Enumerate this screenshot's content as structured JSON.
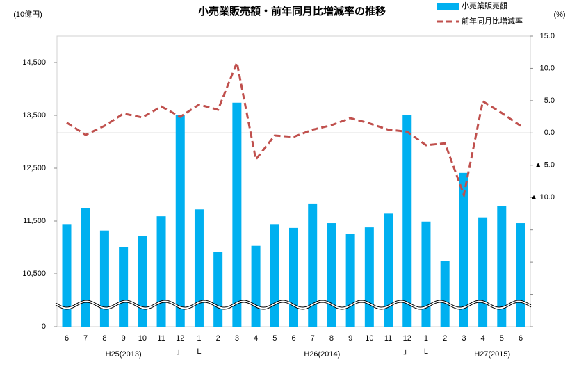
{
  "chart_data": {
    "type": "bar",
    "title": "小売業販売額・前年同月比増減率の推移",
    "y_label": "(10億円)",
    "y2_label": "(%)",
    "categories": [
      "6",
      "7",
      "8",
      "9",
      "10",
      "11",
      "12",
      "1",
      "2",
      "3",
      "4",
      "5",
      "6",
      "7",
      "8",
      "9",
      "10",
      "11",
      "12",
      "1",
      "2",
      "3",
      "4",
      "5",
      "6"
    ],
    "x_groups": [
      "H25(2013)",
      "H26(2014)",
      "H27(2015)"
    ],
    "year_marks": [
      "」",
      "L",
      "」",
      "L"
    ],
    "series": [
      {
        "name": "小売業販売額",
        "type": "bar",
        "color": "#00b0f0",
        "values": [
          11430,
          11750,
          11320,
          11000,
          11220,
          11590,
          13500,
          11720,
          10920,
          13740,
          11030,
          11430,
          11370,
          11830,
          11460,
          11250,
          11380,
          11640,
          13510,
          11490,
          10740,
          12410,
          11570,
          11780,
          11460
        ]
      },
      {
        "name": "前年同月比増減率",
        "type": "line",
        "axis": "y2",
        "color": "#c0504d",
        "dashed": true,
        "values": [
          1.6,
          -0.3,
          1.1,
          3.0,
          2.4,
          4.1,
          2.5,
          4.4,
          3.6,
          10.9,
          -4.1,
          -0.4,
          -0.6,
          0.5,
          1.2,
          2.3,
          1.5,
          0.5,
          0.2,
          -1.9,
          -1.6,
          -9.6,
          4.9,
          3.1,
          1.1
        ]
      }
    ],
    "ylim": [
      0,
      15000
    ],
    "axis_break": [
      0,
      10000
    ],
    "yticks": [
      0,
      {
        "value": 10500,
        "label": "10,500"
      },
      {
        "value": 11500,
        "label": "11,500"
      },
      {
        "value": 12500,
        "label": "12,500"
      },
      {
        "value": 13500,
        "label": "13,500"
      },
      {
        "value": 14500,
        "label": "14,500"
      }
    ],
    "y2lim": [
      -30,
      15
    ],
    "y2ticks": [
      {
        "value": 15,
        "label": "15.0"
      },
      {
        "value": 10,
        "label": "10.0"
      },
      {
        "value": 5,
        "label": "5.0"
      },
      {
        "value": 0,
        "label": "0.0"
      },
      {
        "value": -5,
        "label": "▲ 5.0"
      },
      {
        "value": -10,
        "label": "▲ 10.0"
      }
    ],
    "y2minor_ticks": [
      -15,
      -20,
      -25,
      -30
    ],
    "zero_line": true,
    "legend": "top-right"
  }
}
